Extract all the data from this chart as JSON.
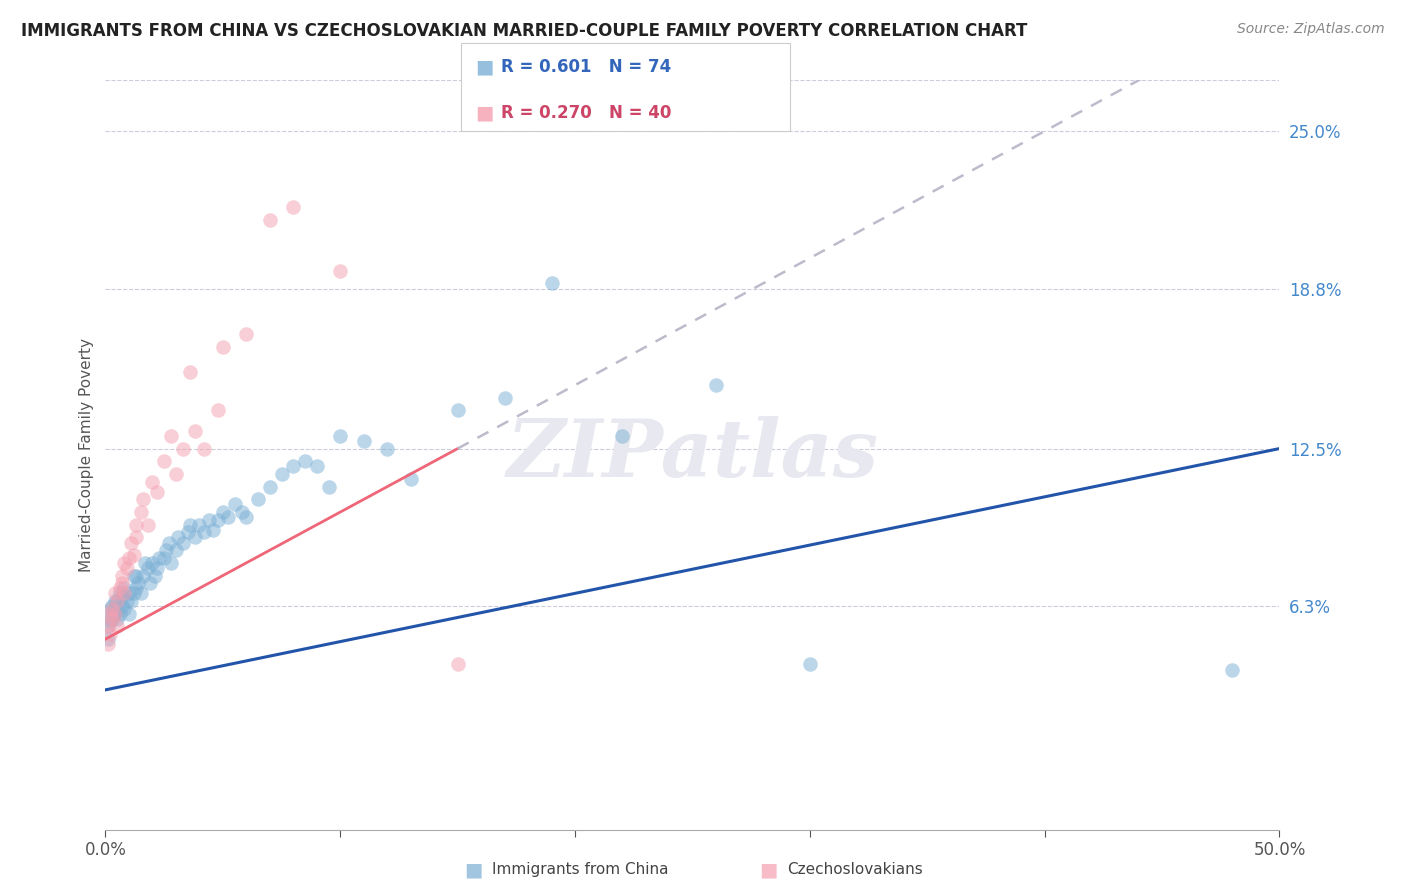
{
  "title": "IMMIGRANTS FROM CHINA VS CZECHOSLOVAKIAN MARRIED-COUPLE FAMILY POVERTY CORRELATION CHART",
  "source": "Source: ZipAtlas.com",
  "ylabel": "Married-Couple Family Poverty",
  "ytick_vals": [
    0.063,
    0.125,
    0.188,
    0.25
  ],
  "ytick_labels": [
    "6.3%",
    "12.5%",
    "18.8%",
    "25.0%"
  ],
  "xlim": [
    0.0,
    0.5
  ],
  "ylim": [
    -0.025,
    0.27
  ],
  "blue_color": "#7BAFD4",
  "pink_color": "#F4A0B0",
  "blue_line_color": "#2255AA",
  "pink_line_color": "#EE6677",
  "gray_dash_color": "#BBBBCC",
  "blue_label": "Immigrants from China",
  "pink_label": "Czechoslovakians",
  "watermark": "ZIPatlas",
  "watermark_color": "#E8E8F0",
  "blue_x": [
    0.001,
    0.001,
    0.002,
    0.002,
    0.003,
    0.003,
    0.003,
    0.004,
    0.004,
    0.005,
    0.005,
    0.005,
    0.006,
    0.006,
    0.007,
    0.007,
    0.008,
    0.008,
    0.009,
    0.01,
    0.01,
    0.011,
    0.012,
    0.012,
    0.013,
    0.013,
    0.014,
    0.015,
    0.016,
    0.017,
    0.018,
    0.019,
    0.02,
    0.021,
    0.022,
    0.023,
    0.025,
    0.026,
    0.027,
    0.028,
    0.03,
    0.031,
    0.033,
    0.035,
    0.036,
    0.038,
    0.04,
    0.042,
    0.044,
    0.046,
    0.048,
    0.05,
    0.052,
    0.055,
    0.058,
    0.06,
    0.065,
    0.07,
    0.075,
    0.08,
    0.085,
    0.09,
    0.095,
    0.1,
    0.11,
    0.12,
    0.13,
    0.15,
    0.17,
    0.19,
    0.22,
    0.26,
    0.3,
    0.48
  ],
  "blue_y": [
    0.05,
    0.055,
    0.057,
    0.062,
    0.058,
    0.06,
    0.063,
    0.065,
    0.06,
    0.058,
    0.062,
    0.065,
    0.06,
    0.068,
    0.063,
    0.067,
    0.062,
    0.07,
    0.065,
    0.06,
    0.068,
    0.065,
    0.068,
    0.075,
    0.07,
    0.075,
    0.072,
    0.068,
    0.075,
    0.08,
    0.078,
    0.072,
    0.08,
    0.075,
    0.078,
    0.082,
    0.082,
    0.085,
    0.088,
    0.08,
    0.085,
    0.09,
    0.088,
    0.092,
    0.095,
    0.09,
    0.095,
    0.092,
    0.097,
    0.093,
    0.097,
    0.1,
    0.098,
    0.103,
    0.1,
    0.098,
    0.105,
    0.11,
    0.115,
    0.118,
    0.12,
    0.118,
    0.11,
    0.13,
    0.128,
    0.125,
    0.113,
    0.14,
    0.145,
    0.19,
    0.13,
    0.15,
    0.04,
    0.038
  ],
  "pink_x": [
    0.001,
    0.001,
    0.002,
    0.002,
    0.003,
    0.003,
    0.004,
    0.004,
    0.005,
    0.005,
    0.006,
    0.007,
    0.007,
    0.008,
    0.008,
    0.009,
    0.01,
    0.011,
    0.012,
    0.013,
    0.013,
    0.015,
    0.016,
    0.018,
    0.02,
    0.022,
    0.025,
    0.028,
    0.03,
    0.033,
    0.036,
    0.038,
    0.042,
    0.048,
    0.05,
    0.06,
    0.07,
    0.08,
    0.1,
    0.15
  ],
  "pink_y": [
    0.048,
    0.055,
    0.052,
    0.06,
    0.058,
    0.062,
    0.06,
    0.068,
    0.055,
    0.065,
    0.07,
    0.075,
    0.072,
    0.068,
    0.08,
    0.078,
    0.082,
    0.088,
    0.083,
    0.09,
    0.095,
    0.1,
    0.105,
    0.095,
    0.112,
    0.108,
    0.12,
    0.13,
    0.115,
    0.125,
    0.155,
    0.132,
    0.125,
    0.14,
    0.165,
    0.17,
    0.215,
    0.22,
    0.195,
    0.04
  ],
  "legend_blue_text": "R = 0.601   N = 74",
  "legend_pink_text": "R = 0.270   N = 40"
}
